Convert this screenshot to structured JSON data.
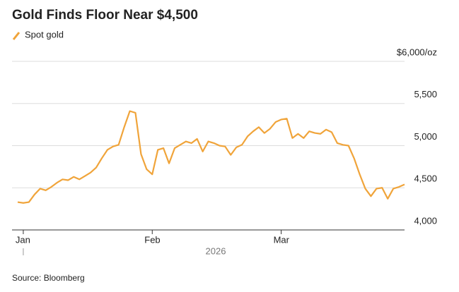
{
  "chart_data": {
    "type": "line",
    "title": "Gold Finds Floor Near $4,500",
    "source": "Source: Bloomberg",
    "year": "2026",
    "categories": [
      null,
      "Jan",
      null,
      null,
      null,
      null,
      null,
      null,
      null,
      null,
      null,
      null,
      null,
      null,
      null,
      null,
      null,
      null,
      null,
      null,
      null,
      null,
      null,
      null,
      "Feb",
      null,
      null,
      null,
      null,
      null,
      null,
      null,
      null,
      null,
      null,
      null,
      null,
      null,
      null,
      null,
      null,
      null,
      null,
      null,
      null,
      null,
      null,
      "Mar",
      null,
      null,
      null,
      null,
      null,
      null,
      null,
      null,
      null,
      null,
      null,
      null,
      null,
      null,
      null,
      null,
      null,
      null,
      null,
      null,
      null,
      null
    ],
    "series": [
      {
        "name": "Spot gold",
        "color": "#f0a43a",
        "values": [
          4330,
          4320,
          4330,
          4420,
          4490,
          4470,
          4510,
          4560,
          4600,
          4590,
          4630,
          4600,
          4640,
          4680,
          4740,
          4850,
          4950,
          4990,
          5010,
          5220,
          5410,
          5390,
          4900,
          4720,
          4660,
          4950,
          4970,
          4790,
          4970,
          5010,
          5050,
          5030,
          5080,
          4930,
          5050,
          5030,
          5000,
          4990,
          4890,
          4980,
          5010,
          5110,
          5170,
          5220,
          5150,
          5200,
          5280,
          5310,
          5320,
          5090,
          5140,
          5090,
          5170,
          5150,
          5140,
          5190,
          5160,
          5030,
          5010,
          5000,
          4850,
          4660,
          4490,
          4400,
          4490,
          4500,
          4370,
          4490,
          4510,
          4540
        ]
      }
    ],
    "ylim": [
      4000,
      6000
    ],
    "yticks": [
      {
        "value": 4000,
        "label": "4,000"
      },
      {
        "value": 4500,
        "label": "4,500"
      },
      {
        "value": 5000,
        "label": "5,000"
      },
      {
        "value": 5500,
        "label": "5,500"
      },
      {
        "value": 6000,
        "label": "$6,000/oz"
      }
    ],
    "grid": true
  }
}
